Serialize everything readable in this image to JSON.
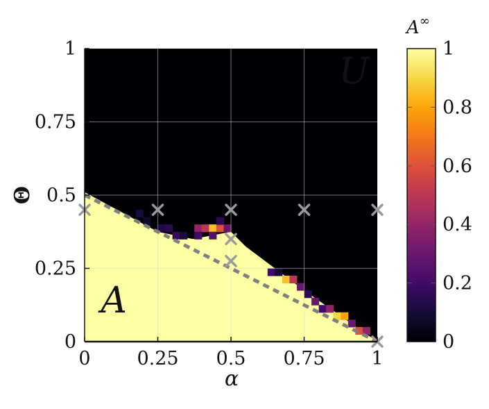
{
  "chart_data": {
    "type": "heatmap",
    "xlabel": "α",
    "ylabel": "Θ",
    "xlim": [
      0,
      1
    ],
    "ylim": [
      0,
      1
    ],
    "x_ticks": [
      "0",
      "0.25",
      "0.5",
      "0.75",
      "1"
    ],
    "y_ticks": [
      "0",
      "0.25",
      "0.5",
      "0.75",
      "1"
    ],
    "grid": true,
    "colorbar": {
      "title_base": "A",
      "title_sup": "∞",
      "range": [
        0,
        1
      ],
      "ticks": [
        "0",
        "0.2",
        "0.4",
        "0.6",
        "0.8",
        "1"
      ],
      "colormap": "inferno"
    },
    "region_labels": [
      {
        "text": "U",
        "alpha": 0.92,
        "theta": 0.88
      },
      {
        "text": "A",
        "alpha": 0.1,
        "theta": 0.1
      }
    ],
    "boundary_line": {
      "style": "dashed",
      "color": "#808080",
      "points": [
        [
          0,
          0.5
        ],
        [
          1,
          0
        ]
      ]
    },
    "markers": {
      "symbol": "×",
      "color": "#9a9a9a",
      "points": [
        [
          0,
          0.45
        ],
        [
          0.25,
          0.45
        ],
        [
          0.5,
          0.45
        ],
        [
          0.75,
          0.45
        ],
        [
          1,
          0.45
        ],
        [
          0.5,
          0.35
        ],
        [
          0.5,
          0.275
        ],
        [
          1,
          0
        ]
      ]
    },
    "grid_resolution": [
      40,
      40
    ],
    "boundary_profile": [
      {
        "alpha": 0.0,
        "theta": 0.51
      },
      {
        "alpha": 0.25,
        "theta": 0.375
      },
      {
        "alpha": 0.37,
        "theta": 0.35
      },
      {
        "alpha": 0.5,
        "theta": 0.375
      },
      {
        "alpha": 0.55,
        "theta": 0.325
      },
      {
        "alpha": 0.75,
        "theta": 0.175
      },
      {
        "alpha": 1.0,
        "theta": 0.0
      }
    ],
    "transition_cells": [
      {
        "alpha": 0.1875,
        "theta": 0.4375,
        "value": 0.1
      },
      {
        "alpha": 0.2125,
        "theta": 0.4125,
        "value": 0.08
      },
      {
        "alpha": 0.2625,
        "theta": 0.3875,
        "value": 0.12
      },
      {
        "alpha": 0.2875,
        "theta": 0.3875,
        "value": 0.15
      },
      {
        "alpha": 0.3125,
        "theta": 0.3625,
        "value": 0.18
      },
      {
        "alpha": 0.3375,
        "theta": 0.3625,
        "value": 0.1
      },
      {
        "alpha": 0.3875,
        "theta": 0.3875,
        "value": 0.4
      },
      {
        "alpha": 0.4125,
        "theta": 0.3875,
        "value": 0.5
      },
      {
        "alpha": 0.4375,
        "theta": 0.3875,
        "value": 0.85
      },
      {
        "alpha": 0.4625,
        "theta": 0.3875,
        "value": 0.6
      },
      {
        "alpha": 0.4625,
        "theta": 0.4125,
        "value": 0.15
      },
      {
        "alpha": 0.4875,
        "theta": 0.3875,
        "value": 0.3
      },
      {
        "alpha": 0.4375,
        "theta": 0.3625,
        "value": 0.25
      },
      {
        "alpha": 0.3875,
        "theta": 0.3625,
        "value": 0.2
      },
      {
        "alpha": 0.6375,
        "theta": 0.2375,
        "value": 0.2
      },
      {
        "alpha": 0.6625,
        "theta": 0.2375,
        "value": 0.1
      },
      {
        "alpha": 0.6875,
        "theta": 0.2125,
        "value": 0.85
      },
      {
        "alpha": 0.7125,
        "theta": 0.2125,
        "value": 0.5
      },
      {
        "alpha": 0.7375,
        "theta": 0.1875,
        "value": 0.3
      },
      {
        "alpha": 0.7625,
        "theta": 0.1625,
        "value": 0.15
      },
      {
        "alpha": 0.7875,
        "theta": 0.1375,
        "value": 0.3
      },
      {
        "alpha": 0.8125,
        "theta": 0.1125,
        "value": 0.2
      },
      {
        "alpha": 0.8375,
        "theta": 0.1125,
        "value": 0.4
      },
      {
        "alpha": 0.8625,
        "theta": 0.0875,
        "value": 0.9
      },
      {
        "alpha": 0.8875,
        "theta": 0.0875,
        "value": 0.8
      },
      {
        "alpha": 0.9125,
        "theta": 0.0625,
        "value": 0.3
      },
      {
        "alpha": 0.9375,
        "theta": 0.0375,
        "value": 0.6
      },
      {
        "alpha": 0.9625,
        "theta": 0.0375,
        "value": 0.4
      }
    ]
  }
}
